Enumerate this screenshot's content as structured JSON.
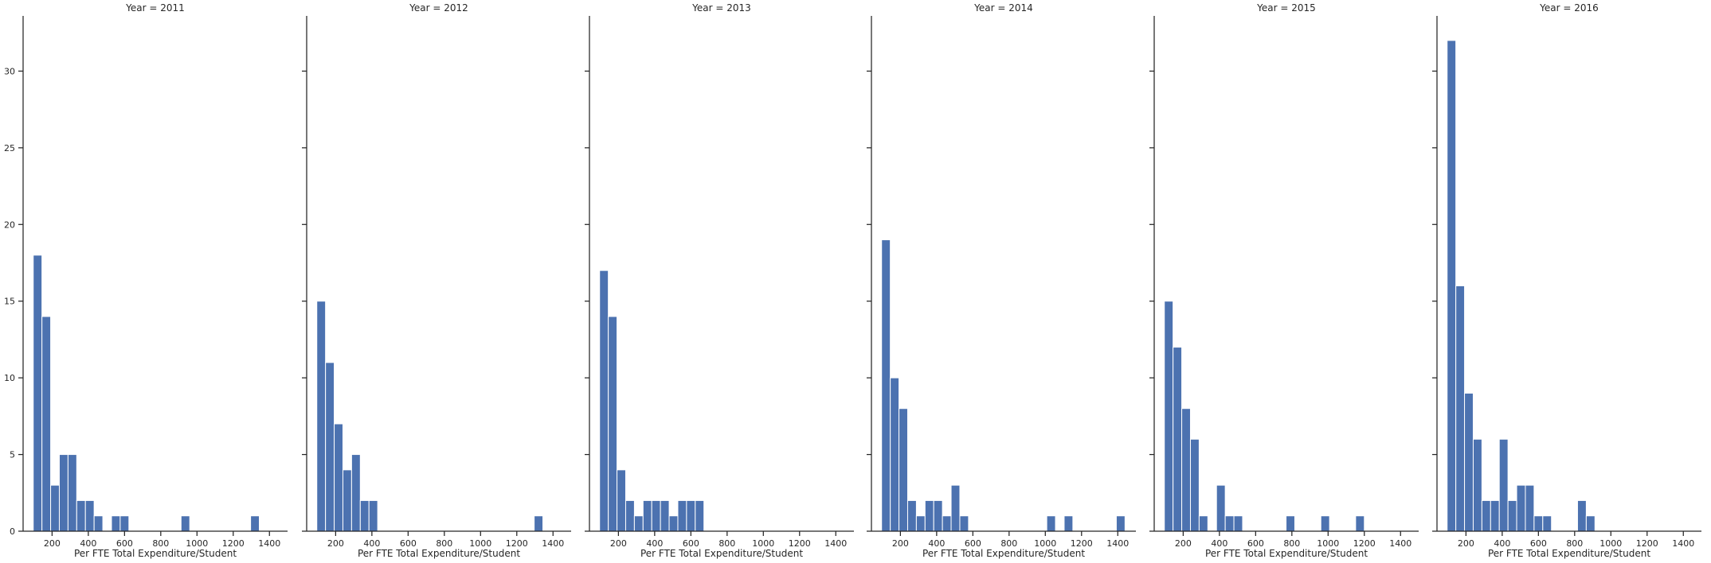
{
  "chart_data": {
    "type": "bar",
    "layout": "facet-grid",
    "bar_color": "#4c72b0",
    "xlim": [
      40,
      1500
    ],
    "ylim": [
      0,
      33.6
    ],
    "xticks": [
      200,
      400,
      600,
      800,
      1000,
      1200,
      1400
    ],
    "yticks": [
      0,
      5,
      10,
      15,
      20,
      25,
      30
    ],
    "bin_width": 48,
    "facets": [
      {
        "title": "Year = 2011",
        "xlabel": "Per FTE Total Expenditure/Student",
        "bins": [
          [
            96,
            18
          ],
          [
            144,
            14
          ],
          [
            192,
            3
          ],
          [
            240,
            5
          ],
          [
            288,
            5
          ],
          [
            336,
            2
          ],
          [
            384,
            2
          ],
          [
            432,
            1
          ],
          [
            528,
            1
          ],
          [
            576,
            1
          ],
          [
            912,
            1
          ],
          [
            1296,
            1
          ]
        ]
      },
      {
        "title": "Year = 2012",
        "xlabel": "Per FTE Total Expenditure/Student",
        "bins": [
          [
            96,
            15
          ],
          [
            144,
            11
          ],
          [
            192,
            7
          ],
          [
            240,
            4
          ],
          [
            288,
            5
          ],
          [
            336,
            2
          ],
          [
            384,
            2
          ],
          [
            1296,
            1
          ]
        ]
      },
      {
        "title": "Year = 2013",
        "xlabel": "Per FTE Total Expenditure/Student",
        "bins": [
          [
            96,
            17
          ],
          [
            144,
            14
          ],
          [
            192,
            4
          ],
          [
            240,
            2
          ],
          [
            288,
            1
          ],
          [
            336,
            2
          ],
          [
            384,
            2
          ],
          [
            432,
            2
          ],
          [
            480,
            1
          ],
          [
            528,
            2
          ],
          [
            576,
            2
          ],
          [
            624,
            2
          ]
        ]
      },
      {
        "title": "Year = 2014",
        "xlabel": "Per FTE Total Expenditure/Student",
        "bins": [
          [
            96,
            19
          ],
          [
            144,
            10
          ],
          [
            192,
            8
          ],
          [
            240,
            2
          ],
          [
            288,
            1
          ],
          [
            336,
            2
          ],
          [
            384,
            2
          ],
          [
            432,
            1
          ],
          [
            480,
            3
          ],
          [
            528,
            1
          ],
          [
            1008,
            1
          ],
          [
            1104,
            1
          ],
          [
            1392,
            1
          ]
        ]
      },
      {
        "title": "Year = 2015",
        "xlabel": "Per FTE Total Expenditure/Student",
        "bins": [
          [
            96,
            15
          ],
          [
            144,
            12
          ],
          [
            192,
            8
          ],
          [
            240,
            6
          ],
          [
            288,
            1
          ],
          [
            384,
            3
          ],
          [
            432,
            1
          ],
          [
            480,
            1
          ],
          [
            768,
            1
          ],
          [
            960,
            1
          ],
          [
            1152,
            1
          ]
        ]
      },
      {
        "title": "Year = 2016",
        "xlabel": "Per FTE Total Expenditure/Student",
        "bins": [
          [
            96,
            32
          ],
          [
            144,
            16
          ],
          [
            192,
            9
          ],
          [
            240,
            6
          ],
          [
            288,
            2
          ],
          [
            336,
            2
          ],
          [
            384,
            6
          ],
          [
            432,
            2
          ],
          [
            480,
            3
          ],
          [
            528,
            3
          ],
          [
            576,
            1
          ],
          [
            624,
            1
          ],
          [
            816,
            2
          ],
          [
            864,
            1
          ]
        ]
      }
    ]
  }
}
